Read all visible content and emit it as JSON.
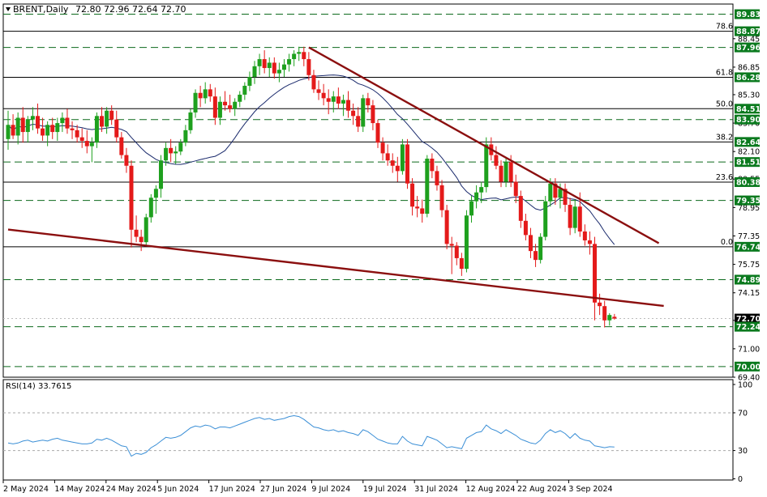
{
  "header": {
    "symbol": "BRENT,Daily",
    "ohlc": "72.80 72.96 72.64 72.70"
  },
  "rsi_header": "RSI(14) 33.7615",
  "colors": {
    "bull": "#1ea01e",
    "bear": "#e41a1a",
    "ma": "#1a2a6c",
    "trend": "#8b0f0f",
    "level_box": "#0a7a1e",
    "dash": "#0c6a1c",
    "rsi": "#3b8fd6"
  },
  "chart_data": [
    {
      "type": "candlestick",
      "title": "BRENT,Daily",
      "ylim": [
        69.4,
        90.4
      ],
      "y_ticks": [
        "88.45",
        "86.85",
        "85.30",
        "83.70",
        "82.10",
        "80.55",
        "78.95",
        "77.35",
        "75.75",
        "74.15",
        "72.60",
        "71.00",
        "69.40"
      ],
      "x_labels": [
        "2 May 2024",
        "14 May 2024",
        "24 May 2024",
        "5 Jun 2024",
        "17 Jun 2024",
        "27 Jun 2024",
        "9 Jul 2024",
        "19 Jul 2024",
        "31 Jul 2024",
        "12 Aug 2024",
        "22 Aug 2024",
        "3 Sep 2024"
      ],
      "horizontal_levels": [
        {
          "value": 89.83,
          "label": "89.83",
          "style": "dashed"
        },
        {
          "value": 88.87,
          "label": "88.87",
          "style": "solid",
          "fib": "78.6"
        },
        {
          "value": 87.96,
          "label": "87.96",
          "style": "dashed"
        },
        {
          "value": 86.28,
          "label": "86.28",
          "style": "solid",
          "fib": "61.8"
        },
        {
          "value": 84.51,
          "label": "84.51",
          "style": "solid",
          "fib": "50.0"
        },
        {
          "value": 83.9,
          "label": "83.90",
          "style": "dashed"
        },
        {
          "value": 82.64,
          "label": "82.64",
          "style": "solid",
          "fib": "38.2"
        },
        {
          "value": 81.51,
          "label": "81.51",
          "style": "dashed"
        },
        {
          "value": 80.38,
          "label": "80.38",
          "style": "solid",
          "fib": "23.6"
        },
        {
          "value": 79.35,
          "label": "79.35",
          "style": "dashed"
        },
        {
          "value": 76.74,
          "label": "76.74",
          "style": "solid",
          "fib": "0.0"
        },
        {
          "value": 74.89,
          "label": "74.89",
          "style": "dashed"
        },
        {
          "value": 72.7,
          "label": "72.70",
          "style": "current"
        },
        {
          "value": 72.24,
          "label": "72.24",
          "style": "dashed"
        },
        {
          "value": 70.0,
          "label": "70.00",
          "style": "dashed"
        }
      ],
      "trendlines": [
        {
          "from": [
            61,
            87.96
          ],
          "to": [
            132,
            76.94
          ]
        },
        {
          "from": [
            0,
            77.71
          ],
          "to": [
            133,
            73.41
          ]
        }
      ],
      "candles": [
        [
          82.8,
          84.4,
          82.2,
          83.6
        ],
        [
          83.6,
          84.2,
          82.8,
          83.0
        ],
        [
          83.0,
          84.3,
          82.5,
          84.0
        ],
        [
          84.0,
          84.6,
          82.6,
          83.2
        ],
        [
          83.2,
          84.1,
          82.6,
          83.9
        ],
        [
          83.9,
          84.6,
          83.3,
          84.1
        ],
        [
          84.1,
          84.8,
          83.1,
          83.4
        ],
        [
          83.4,
          84.0,
          82.7,
          83.0
        ],
        [
          83.0,
          83.8,
          82.4,
          83.6
        ],
        [
          83.6,
          84.0,
          82.8,
          83.2
        ],
        [
          83.2,
          84.0,
          82.7,
          83.7
        ],
        [
          83.7,
          84.3,
          83.2,
          84.0
        ],
        [
          84.0,
          84.5,
          83.1,
          83.4
        ],
        [
          83.4,
          83.8,
          82.8,
          83.3
        ],
        [
          83.3,
          83.6,
          82.6,
          82.9
        ],
        [
          82.9,
          83.4,
          82.3,
          82.7
        ],
        [
          82.7,
          83.3,
          82.0,
          82.4
        ],
        [
          82.4,
          82.9,
          81.5,
          82.6
        ],
        [
          82.6,
          84.3,
          82.3,
          84.1
        ],
        [
          84.1,
          84.6,
          83.2,
          83.5
        ],
        [
          83.5,
          84.6,
          83.1,
          84.4
        ],
        [
          84.4,
          84.7,
          83.6,
          83.9
        ],
        [
          83.9,
          84.4,
          82.6,
          82.9
        ],
        [
          82.9,
          83.2,
          81.7,
          81.9
        ],
        [
          81.9,
          82.3,
          80.9,
          81.3
        ],
        [
          81.3,
          81.6,
          76.7,
          77.7
        ],
        [
          77.7,
          78.5,
          77.0,
          77.3
        ],
        [
          77.3,
          77.7,
          76.5,
          77.0
        ],
        [
          77.0,
          78.6,
          76.8,
          78.4
        ],
        [
          78.4,
          79.7,
          78.1,
          79.5
        ],
        [
          79.5,
          80.2,
          78.6,
          80.0
        ],
        [
          80.0,
          81.9,
          79.5,
          81.6
        ],
        [
          81.6,
          82.6,
          81.3,
          82.3
        ],
        [
          82.3,
          82.8,
          81.5,
          82.0
        ],
        [
          82.0,
          82.4,
          81.4,
          82.1
        ],
        [
          82.1,
          82.8,
          81.9,
          82.6
        ],
        [
          82.6,
          83.6,
          82.4,
          83.3
        ],
        [
          83.3,
          84.5,
          83.1,
          84.3
        ],
        [
          84.3,
          85.6,
          84.0,
          85.4
        ],
        [
          85.4,
          85.8,
          84.6,
          85.1
        ],
        [
          85.1,
          86.0,
          84.8,
          85.6
        ],
        [
          85.6,
          85.9,
          84.9,
          85.2
        ],
        [
          85.2,
          85.7,
          83.6,
          84.0
        ],
        [
          84.0,
          85.2,
          83.6,
          84.9
        ],
        [
          84.9,
          85.5,
          84.4,
          84.7
        ],
        [
          84.7,
          85.3,
          84.3,
          84.5
        ],
        [
          84.5,
          85.1,
          84.1,
          84.9
        ],
        [
          84.9,
          85.5,
          84.6,
          85.3
        ],
        [
          85.3,
          86.0,
          85.0,
          85.8
        ],
        [
          85.8,
          86.6,
          85.5,
          86.3
        ],
        [
          86.3,
          87.2,
          85.9,
          86.9
        ],
        [
          86.9,
          87.6,
          86.4,
          87.3
        ],
        [
          87.3,
          87.8,
          86.5,
          86.8
        ],
        [
          86.8,
          87.4,
          86.3,
          87.1
        ],
        [
          87.1,
          87.4,
          86.2,
          86.5
        ],
        [
          86.5,
          87.1,
          86.0,
          86.7
        ],
        [
          86.7,
          87.3,
          86.3,
          87.0
        ],
        [
          87.0,
          87.6,
          86.6,
          87.3
        ],
        [
          87.3,
          87.8,
          86.9,
          87.6
        ],
        [
          87.6,
          88.0,
          87.2,
          87.7
        ],
        [
          87.7,
          88.0,
          86.9,
          87.3
        ],
        [
          87.3,
          87.7,
          86.1,
          86.4
        ],
        [
          86.4,
          86.7,
          85.4,
          85.6
        ],
        [
          85.6,
          86.1,
          85.0,
          85.4
        ],
        [
          85.4,
          85.9,
          84.7,
          85.1
        ],
        [
          85.1,
          85.6,
          84.2,
          84.9
        ],
        [
          84.9,
          85.5,
          84.3,
          85.2
        ],
        [
          85.2,
          85.7,
          84.5,
          84.8
        ],
        [
          84.8,
          85.3,
          84.1,
          85.0
        ],
        [
          85.0,
          85.5,
          84.0,
          84.4
        ],
        [
          84.4,
          84.8,
          83.6,
          84.1
        ],
        [
          84.1,
          84.6,
          83.2,
          83.5
        ],
        [
          83.5,
          85.3,
          83.2,
          85.1
        ],
        [
          85.1,
          85.4,
          84.3,
          84.7
        ],
        [
          84.7,
          85.0,
          83.3,
          83.7
        ],
        [
          83.7,
          83.9,
          82.3,
          82.6
        ],
        [
          82.6,
          82.9,
          81.6,
          82.0
        ],
        [
          82.0,
          82.5,
          81.3,
          81.6
        ],
        [
          81.6,
          82.0,
          80.9,
          81.3
        ],
        [
          81.3,
          81.8,
          80.4,
          81.0
        ],
        [
          81.0,
          82.8,
          80.8,
          82.5
        ],
        [
          82.5,
          82.8,
          80.0,
          80.3
        ],
        [
          80.3,
          80.6,
          78.5,
          79.0
        ],
        [
          79.0,
          79.6,
          78.4,
          78.9
        ],
        [
          78.9,
          79.4,
          78.1,
          78.6
        ],
        [
          78.6,
          81.9,
          78.4,
          81.7
        ],
        [
          81.7,
          82.0,
          80.6,
          81.0
        ],
        [
          81.0,
          81.3,
          79.9,
          80.2
        ],
        [
          80.2,
          80.5,
          78.4,
          78.8
        ],
        [
          78.8,
          79.1,
          76.6,
          76.9
        ],
        [
          76.9,
          77.3,
          75.2,
          76.8
        ],
        [
          76.8,
          77.0,
          75.7,
          76.1
        ],
        [
          76.1,
          76.4,
          75.1,
          75.5
        ],
        [
          75.5,
          78.8,
          75.3,
          78.5
        ],
        [
          78.5,
          79.6,
          78.1,
          79.3
        ],
        [
          79.3,
          80.2,
          78.9,
          79.8
        ],
        [
          79.8,
          80.4,
          79.2,
          80.1
        ],
        [
          80.1,
          82.9,
          79.8,
          82.5
        ],
        [
          82.5,
          82.9,
          81.6,
          81.9
        ],
        [
          81.9,
          82.4,
          81.1,
          81.3
        ],
        [
          81.3,
          81.6,
          80.1,
          80.4
        ],
        [
          80.4,
          81.8,
          80.1,
          81.5
        ],
        [
          81.5,
          81.9,
          80.1,
          80.4
        ],
        [
          80.4,
          80.8,
          79.2,
          79.6
        ],
        [
          79.6,
          79.9,
          77.8,
          78.2
        ],
        [
          78.2,
          78.6,
          77.1,
          77.4
        ],
        [
          77.4,
          77.8,
          76.1,
          76.5
        ],
        [
          76.5,
          76.9,
          75.6,
          76.0
        ],
        [
          76.0,
          77.5,
          75.8,
          77.3
        ],
        [
          77.3,
          79.6,
          77.1,
          79.3
        ],
        [
          79.3,
          80.6,
          79.0,
          80.3
        ],
        [
          80.3,
          80.6,
          79.1,
          79.5
        ],
        [
          79.5,
          80.3,
          78.9,
          80.0
        ],
        [
          80.0,
          80.3,
          78.7,
          79.1
        ],
        [
          79.1,
          79.5,
          77.4,
          77.8
        ],
        [
          77.8,
          79.4,
          77.5,
          79.0
        ],
        [
          79.0,
          79.8,
          77.3,
          77.6
        ],
        [
          77.6,
          78.0,
          76.8,
          77.1
        ],
        [
          77.1,
          77.6,
          76.3,
          76.9
        ],
        [
          76.9,
          77.3,
          72.6,
          73.6
        ],
        [
          73.6,
          74.1,
          72.9,
          73.4
        ],
        [
          73.4,
          73.7,
          72.2,
          72.6
        ],
        [
          72.6,
          73.0,
          72.3,
          72.9
        ],
        [
          72.8,
          72.96,
          72.64,
          72.7
        ]
      ]
    },
    {
      "type": "line",
      "title": "RSI(14) 33.7615",
      "ylim": [
        0,
        100
      ],
      "y_ticks": [
        "100",
        "70",
        "30",
        "0"
      ],
      "levels": [
        70,
        30
      ],
      "series": [
        {
          "values": [
            38,
            37,
            38,
            40,
            41,
            39,
            40,
            41,
            40,
            42,
            43,
            41,
            40,
            39,
            38,
            37,
            37,
            38,
            42,
            41,
            43,
            41,
            38,
            35,
            34,
            24,
            27,
            26,
            28,
            33,
            36,
            40,
            44,
            43,
            44,
            46,
            50,
            54,
            56,
            55,
            57,
            56,
            53,
            55,
            55,
            54,
            56,
            58,
            60,
            62,
            64,
            65,
            63,
            64,
            62,
            63,
            64,
            66,
            67,
            66,
            63,
            59,
            55,
            54,
            52,
            51,
            52,
            50,
            51,
            49,
            48,
            46,
            52,
            50,
            46,
            42,
            40,
            38,
            37,
            37,
            45,
            40,
            37,
            36,
            35,
            45,
            43,
            41,
            37,
            33,
            34,
            33,
            32,
            43,
            46,
            49,
            50,
            57,
            53,
            51,
            48,
            52,
            49,
            46,
            42,
            40,
            38,
            37,
            41,
            48,
            52,
            49,
            51,
            48,
            43,
            48,
            43,
            41,
            40,
            35,
            34,
            33,
            34,
            33.76
          ]
        }
      ]
    }
  ]
}
